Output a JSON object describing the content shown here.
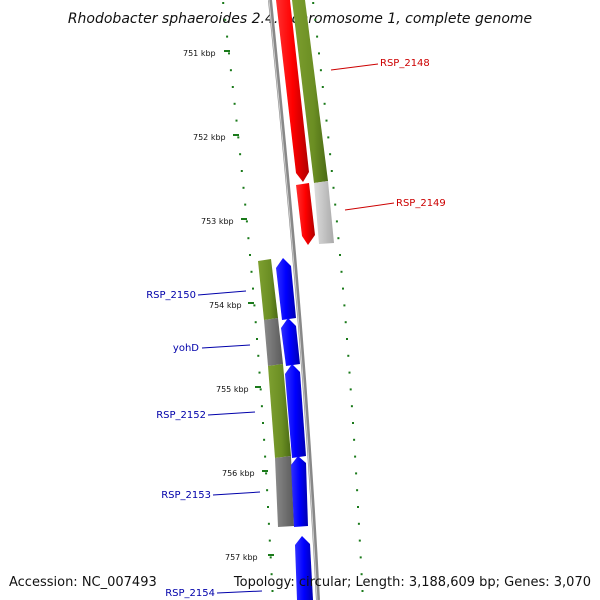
{
  "title": "Rhodobacter sphaeroides 2.4.1 chromosome 1, complete genome",
  "footer": {
    "accession": "Accession: NC_007493",
    "topology": "Topology: circular; Length: 3,188,609 bp; Genes: 3,070"
  },
  "colors": {
    "forward_gene": "#ff0000",
    "reverse_gene": "#0000ff",
    "cog_green": "#6b8e23",
    "cog_gray": "#777777",
    "cog_light": "#cccccc",
    "tick": "#1a7a1a",
    "backbone": "#888888",
    "label_forward": "#cc0000",
    "label_reverse": "#0000aa"
  },
  "kbp_ticks": [
    "751 kbp",
    "752 kbp",
    "753 kbp",
    "754 kbp",
    "755 kbp",
    "756 kbp",
    "757 kbp"
  ],
  "genes_forward": [
    {
      "label": "RSP_2148"
    },
    {
      "label": "RSP_2149"
    }
  ],
  "genes_reverse": [
    {
      "label": "RSP_2150"
    },
    {
      "label": "yohD"
    },
    {
      "label": "RSP_2152"
    },
    {
      "label": "RSP_2153"
    },
    {
      "label": "RSP_2154"
    }
  ]
}
